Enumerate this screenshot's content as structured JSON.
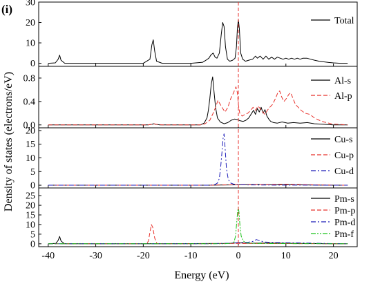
{
  "panel_label": "(i)",
  "ylabel": "Density of states (electrons/eV)",
  "xlabel": "Energy (eV)",
  "chart_data": [
    {
      "type": "line",
      "xlim": [
        -42,
        25
      ],
      "ylim": [
        -1.5,
        30
      ],
      "yticks": [
        0,
        10,
        20,
        30
      ],
      "xticks": [],
      "legend_position": "top-right",
      "series": [
        {
          "name": "Total",
          "color": "#000000",
          "dash": "solid",
          "x": [
            -40,
            -38.5,
            -37.9,
            -37.6,
            -37.3,
            -36.5,
            -20,
            -18.6,
            -18.2,
            -17.9,
            -17.6,
            -17.2,
            -16,
            -10,
            -7.5,
            -6.8,
            -6.2,
            -5.8,
            -5.3,
            -4.9,
            -4.5,
            -4.0,
            -3.6,
            -3.3,
            -3.0,
            -2.7,
            -2.3,
            -1.8,
            -1.2,
            -0.7,
            -0.4,
            -0.2,
            0.0,
            0.2,
            0.5,
            0.9,
            1.5,
            2.2,
            3.0,
            3.6,
            4.0,
            4.6,
            5.2,
            5.8,
            6.4,
            7.0,
            7.6,
            8.2,
            8.8,
            9.4,
            10.0,
            10.6,
            11.2,
            11.8,
            12.4,
            13.0,
            13.6,
            14.4,
            15.2,
            16.0,
            17.0,
            18.0,
            19.0,
            20.0,
            21.5,
            23
          ],
          "y": [
            0,
            0.2,
            2,
            4,
            1.5,
            0,
            0,
            2,
            9,
            11.5,
            6,
            1,
            0,
            0,
            0.5,
            1.5,
            2.5,
            4,
            5,
            3,
            2.5,
            5,
            14,
            20,
            18,
            8,
            2,
            1,
            1.5,
            2.5,
            8,
            17,
            21.5,
            17,
            5,
            2,
            1,
            1.5,
            2,
            3.5,
            2.5,
            3.5,
            2,
            3.5,
            2,
            3,
            2,
            3,
            2.5,
            2,
            2.5,
            2,
            2.5,
            2,
            2.5,
            2,
            2.5,
            2.5,
            2,
            1.5,
            1,
            0.7,
            0.4,
            0.2,
            0,
            0
          ]
        }
      ]
    },
    {
      "type": "line",
      "xlim": [
        -42,
        25
      ],
      "ylim": [
        -0.05,
        1.0
      ],
      "yticks": [
        0.0,
        0.4,
        0.8
      ],
      "xticks": [],
      "legend_position": "top-right",
      "series": [
        {
          "name": "Al-s",
          "color": "#000000",
          "dash": "solid",
          "x": [
            -40,
            -19,
            -18.2,
            -17.8,
            -17.4,
            -16.5,
            -8,
            -7.2,
            -6.6,
            -6.3,
            -6.0,
            -5.7,
            -5.4,
            -5.1,
            -4.8,
            -4.4,
            -3.8,
            -3.0,
            -2.2,
            -1.5,
            -0.8,
            -0.2,
            0.4,
            1.0,
            1.6,
            2.2,
            2.8,
            3.2,
            3.6,
            4.0,
            4.4,
            4.8,
            5.2,
            5.6,
            6.0,
            6.4,
            6.8,
            7.4,
            8.2,
            9.2,
            10.4,
            11.6,
            13,
            14.5,
            16,
            18,
            20,
            23
          ],
          "y": [
            0,
            0,
            0.01,
            0.02,
            0.01,
            0,
            0,
            0.03,
            0.12,
            0.25,
            0.45,
            0.7,
            0.82,
            0.55,
            0.3,
            0.12,
            0.05,
            0.02,
            0.04,
            0.08,
            0.1,
            0.09,
            0.07,
            0.06,
            0.08,
            0.12,
            0.2,
            0.25,
            0.18,
            0.28,
            0.22,
            0.3,
            0.2,
            0.26,
            0.15,
            0.1,
            0.06,
            0.04,
            0.03,
            0.05,
            0.03,
            0.04,
            0.03,
            0.04,
            0.02,
            0.01,
            0,
            0
          ]
        },
        {
          "name": "Al-p",
          "color": "#e8312b",
          "dash": "dashed",
          "x": [
            -40,
            -19,
            -18.2,
            -17.8,
            -17.2,
            -16,
            -8,
            -7,
            -6.0,
            -5.3,
            -4.8,
            -4.3,
            -3.8,
            -3.3,
            -2.8,
            -2.2,
            -1.6,
            -1.0,
            -0.5,
            -0.2,
            0.0,
            0.3,
            0.8,
            1.4,
            2.0,
            2.6,
            3.1,
            3.6,
            4.1,
            4.6,
            5.1,
            5.6,
            6.1,
            6.6,
            7.2,
            7.8,
            8.3,
            8.7,
            9.1,
            9.6,
            10.1,
            10.6,
            11.0,
            11.5,
            12.0,
            12.6,
            13.2,
            14.0,
            15.0,
            16.0,
            17.0,
            18.0,
            19.5,
            21,
            23
          ],
          "y": [
            0,
            0,
            0.01,
            0.02,
            0.01,
            0,
            0,
            0.02,
            0.08,
            0.2,
            0.3,
            0.42,
            0.35,
            0.28,
            0.22,
            0.3,
            0.45,
            0.55,
            0.65,
            0.55,
            0.35,
            0.2,
            0.15,
            0.18,
            0.2,
            0.25,
            0.3,
            0.25,
            0.32,
            0.28,
            0.22,
            0.18,
            0.25,
            0.3,
            0.35,
            0.45,
            0.55,
            0.58,
            0.48,
            0.4,
            0.45,
            0.52,
            0.55,
            0.45,
            0.35,
            0.3,
            0.25,
            0.2,
            0.18,
            0.12,
            0.08,
            0.05,
            0.02,
            0.01,
            0
          ]
        }
      ]
    },
    {
      "type": "line",
      "xlim": [
        -42,
        25
      ],
      "ylim": [
        -1.0,
        21
      ],
      "yticks": [
        0,
        5,
        10,
        15,
        20
      ],
      "xticks": [],
      "legend_position": "top-right",
      "series": [
        {
          "name": "Cu-s",
          "color": "#000000",
          "dash": "solid",
          "x": [
            -40,
            -6,
            -4,
            -2,
            0,
            2,
            4,
            6,
            8,
            10,
            12,
            14,
            16,
            18,
            20,
            23
          ],
          "y": [
            0,
            0,
            0.05,
            0.1,
            0.15,
            0.2,
            0.3,
            0.2,
            0.15,
            0.25,
            0.15,
            0.1,
            0.05,
            0.03,
            0,
            0
          ]
        },
        {
          "name": "Cu-p",
          "color": "#e8312b",
          "dash": "dashed",
          "x": [
            -40,
            -6,
            -4,
            -2,
            0,
            2,
            4,
            6,
            8,
            10,
            12,
            14,
            16,
            18,
            20,
            23
          ],
          "y": [
            0,
            0,
            0.1,
            0.15,
            0.2,
            0.2,
            0.3,
            0.25,
            0.35,
            0.4,
            0.3,
            0.25,
            0.15,
            0.08,
            0.03,
            0
          ]
        },
        {
          "name": "Cu-d",
          "color": "#1b1bb8",
          "dash": "dashdot",
          "x": [
            -40,
            -6,
            -5,
            -4.4,
            -4.0,
            -3.7,
            -3.4,
            -3.2,
            -3.0,
            -2.8,
            -2.5,
            -2.1,
            -1.6,
            -1.0,
            0,
            2,
            6,
            12,
            23
          ],
          "y": [
            0,
            0,
            0.2,
            0.8,
            2.5,
            7,
            13,
            17.5,
            18.8,
            14,
            6,
            2,
            0.8,
            0.4,
            0.2,
            0.1,
            0.05,
            0.03,
            0
          ]
        }
      ]
    },
    {
      "type": "line",
      "xlim": [
        -42,
        25
      ],
      "ylim": [
        -1.5,
        29
      ],
      "yticks": [
        0,
        5,
        10,
        15,
        20,
        25
      ],
      "xticks": [
        -40,
        -30,
        -20,
        -10,
        0,
        10,
        20
      ],
      "legend_position": "top-right",
      "series": [
        {
          "name": "Pm-s",
          "color": "#000000",
          "dash": "solid",
          "x": [
            -40,
            -38.4,
            -37.9,
            -37.6,
            -37.3,
            -36.6,
            -20,
            -2,
            0,
            2,
            6,
            12,
            20,
            23
          ],
          "y": [
            0,
            0.2,
            1.8,
            3.8,
            1.5,
            0,
            0,
            0.2,
            0.5,
            0.3,
            0.4,
            0.2,
            0.05,
            0
          ]
        },
        {
          "name": "Pm-p",
          "color": "#e8312b",
          "dash": "dashed",
          "x": [
            -40,
            -19.3,
            -18.9,
            -18.6,
            -18.3,
            -18.0,
            -17.6,
            -17.1,
            -10,
            0,
            23
          ],
          "y": [
            0,
            0,
            1.5,
            6,
            10,
            8.5,
            3,
            0,
            0,
            0.2,
            0
          ]
        },
        {
          "name": "Pm-d",
          "color": "#1b1bb8",
          "dash": "dashdot",
          "x": [
            -40,
            -6,
            -2,
            0,
            2,
            3,
            3.8,
            4.6,
            5.6,
            8,
            12,
            16,
            20,
            23
          ],
          "y": [
            0,
            0,
            0.3,
            0.6,
            0.8,
            1.2,
            2.2,
            1.5,
            0.9,
            0.6,
            0.5,
            0.3,
            0.1,
            0
          ]
        },
        {
          "name": "Pm-f",
          "color": "#19c219",
          "dash": "dashdotdot",
          "x": [
            -40,
            -3,
            -1.5,
            -0.9,
            -0.6,
            -0.35,
            -0.15,
            0.0,
            0.15,
            0.35,
            0.6,
            1.0,
            1.6,
            3,
            8,
            23
          ],
          "y": [
            0,
            0,
            0.3,
            1,
            4,
            11,
            17,
            19,
            16,
            9,
            4,
            1.5,
            0.5,
            0.2,
            0.1,
            0
          ]
        }
      ]
    }
  ]
}
